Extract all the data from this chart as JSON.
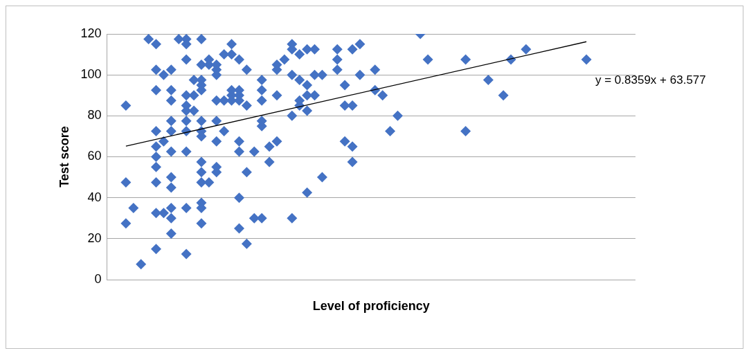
{
  "chart_data": {
    "type": "scatter",
    "xlabel": "Level of proficiency",
    "ylabel": "Test score",
    "ylim": [
      0,
      120
    ],
    "yticks": [
      0,
      20,
      40,
      60,
      80,
      100,
      120
    ],
    "grid": "y",
    "marker": "diamond",
    "annotations": [
      "y = 0.8359x + 63.577"
    ],
    "categories": [
      null,
      null,
      null,
      null,
      null,
      null,
      null,
      null,
      null,
      null,
      null,
      null,
      null,
      null,
      null,
      null,
      null,
      null,
      null,
      null,
      null,
      null,
      null,
      null,
      null,
      null,
      null,
      null,
      null,
      null,
      null,
      null,
      null,
      null,
      null,
      null,
      null,
      null,
      null,
      null,
      null,
      null,
      null,
      null,
      null,
      null,
      null,
      null,
      null,
      null,
      null,
      null,
      null,
      null,
      null,
      null,
      null,
      null,
      null,
      null,
      null,
      null,
      null,
      null,
      null,
      null,
      null,
      null,
      null,
      null
    ],
    "series": [
      {
        "color": "#4472c4",
        "values": [
          null,
          null,
          85,
          35,
          7.5,
          117.5,
          115,
          100,
          102.5,
          117.5,
          117.5,
          97.5,
          117.5,
          107.5,
          105,
          110,
          115,
          107.5,
          102.5,
          62.5,
          97.5,
          65,
          105,
          107.5,
          115,
          110,
          112.5,
          112.5,
          100,
          null,
          112.5,
          95,
          112.5,
          115,
          null,
          102.5,
          90,
          72.5,
          80,
          null,
          null,
          120,
          107.5,
          null,
          null,
          null,
          null,
          107.5,
          null,
          null,
          97.5,
          null,
          90,
          107.5,
          null,
          112.5,
          null,
          null,
          null,
          null,
          null,
          null,
          null,
          107.5,
          null,
          null,
          null,
          null,
          null,
          null
        ]
      },
      {
        "color": "#4472c4",
        "values": [
          null,
          null,
          47.5,
          null,
          null,
          null,
          102.5,
          67.5,
          92.5,
          null,
          115,
          90,
          105,
          105,
          102.5,
          87.5,
          110,
          92.5,
          85,
          30,
          92.5,
          57.5,
          102.5,
          null,
          112.5,
          97.5,
          95,
          100,
          50,
          null,
          107.5,
          85,
          85,
          100,
          null,
          92.5,
          null,
          null,
          null,
          null,
          null,
          null,
          null,
          null,
          null,
          null,
          null,
          72.5,
          null,
          null,
          null,
          null,
          null,
          null,
          null,
          null,
          null,
          null,
          null,
          null,
          null,
          null,
          null,
          null,
          null,
          null,
          null,
          null,
          null,
          null
        ]
      },
      {
        "color": "#4472c4",
        "values": [
          null,
          null,
          27.5,
          null,
          null,
          null,
          92.5,
          32.5,
          87.5,
          null,
          107.5,
          82.5,
          97.5,
          47.5,
          100,
          72.5,
          92.5,
          90,
          52.5,
          null,
          87.5,
          null,
          90,
          null,
          100,
          87.5,
          90,
          90,
          null,
          null,
          102.5,
          67.5,
          65,
          null,
          null,
          null,
          null,
          null,
          null,
          null,
          null,
          null,
          null,
          null,
          null,
          null,
          null,
          null,
          null,
          null,
          null,
          null,
          null,
          null,
          null,
          null,
          null,
          null,
          null,
          null,
          null,
          null,
          null,
          null,
          null,
          null,
          null,
          null,
          null,
          null
        ]
      },
      {
        "color": "#4472c4",
        "values": [
          null,
          null,
          null,
          null,
          null,
          null,
          72.5,
          null,
          77.5,
          null,
          90,
          null,
          95,
          null,
          87.5,
          null,
          90,
          87.5,
          17.5,
          null,
          77.5,
          null,
          67.5,
          null,
          80,
          85,
          82.5,
          null,
          null,
          null,
          null,
          null,
          57.5,
          null,
          null,
          null,
          null,
          null,
          null,
          null,
          null,
          null,
          null,
          null,
          null,
          null,
          null,
          null,
          null,
          null,
          null,
          null,
          null,
          null,
          null,
          null,
          null,
          null,
          null,
          null,
          null,
          null,
          null,
          null,
          null,
          null,
          null,
          null,
          null,
          null
        ]
      },
      {
        "color": "#4472c4",
        "values": [
          null,
          null,
          null,
          null,
          null,
          null,
          65,
          null,
          72.5,
          null,
          85,
          null,
          92.5,
          null,
          77.5,
          null,
          87.5,
          67.5,
          null,
          null,
          75,
          null,
          null,
          null,
          30,
          null,
          42.5,
          null,
          null,
          null,
          null,
          null,
          null,
          null,
          null,
          null,
          null,
          null,
          null,
          null,
          null,
          null,
          null,
          null,
          null,
          null,
          null,
          null,
          null,
          null,
          null,
          null,
          null,
          null,
          null,
          null,
          null,
          null,
          null,
          null,
          null,
          null,
          null,
          null,
          null,
          null,
          null,
          null,
          null,
          null
        ]
      },
      {
        "color": "#4472c4",
        "values": [
          null,
          null,
          null,
          null,
          null,
          null,
          60,
          null,
          62.5,
          null,
          82.5,
          null,
          77.5,
          null,
          67.5,
          null,
          null,
          62.5,
          null,
          null,
          30,
          null,
          null,
          null,
          null,
          null,
          null,
          null,
          null,
          null,
          null,
          null,
          null,
          null,
          null,
          null,
          null,
          null,
          null,
          null,
          null,
          null,
          null,
          null,
          null,
          null,
          null,
          null,
          null,
          null,
          null,
          null,
          null,
          null,
          null,
          null,
          null,
          null,
          null,
          null,
          null,
          null,
          null,
          null,
          null,
          null,
          null,
          null,
          null,
          null
        ]
      },
      {
        "color": "#4472c4",
        "values": [
          null,
          null,
          null,
          null,
          null,
          null,
          55,
          null,
          50,
          null,
          77.5,
          null,
          72.5,
          null,
          55,
          null,
          null,
          40,
          null,
          null,
          null,
          null,
          null,
          null,
          null,
          null,
          null,
          null,
          null,
          null,
          null,
          null,
          null,
          null,
          null,
          null,
          null,
          null,
          null,
          null,
          null,
          null,
          null,
          null,
          null,
          null,
          null,
          null,
          null,
          null,
          null,
          null,
          null,
          null,
          null,
          null,
          null,
          null,
          null,
          null,
          null,
          null,
          null,
          null,
          null,
          null,
          null,
          null,
          null,
          null
        ]
      },
      {
        "color": "#4472c4",
        "values": [
          null,
          null,
          null,
          null,
          null,
          null,
          47.5,
          null,
          45,
          null,
          72.5,
          null,
          70,
          null,
          52.5,
          null,
          null,
          25,
          null,
          null,
          null,
          null,
          null,
          null,
          null,
          null,
          null,
          null,
          null,
          null,
          null,
          null,
          null,
          null,
          null,
          null,
          null,
          null,
          null,
          null,
          null,
          null,
          null,
          null,
          null,
          null,
          null,
          null,
          null,
          null,
          null,
          null,
          null,
          null,
          null,
          null,
          null,
          null,
          null,
          null,
          null,
          null,
          null,
          null,
          null,
          null,
          null,
          null,
          null,
          null
        ]
      },
      {
        "color": "#4472c4",
        "values": [
          null,
          null,
          null,
          null,
          null,
          null,
          32.5,
          null,
          35,
          null,
          62.5,
          null,
          57.5,
          null,
          null,
          null,
          null,
          null,
          null,
          null,
          null,
          null,
          null,
          null,
          null,
          null,
          null,
          null,
          null,
          null,
          null,
          null,
          null,
          null,
          null,
          null,
          null,
          null,
          null,
          null,
          null,
          null,
          null,
          null,
          null,
          null,
          null,
          null,
          null,
          null,
          null,
          null,
          null,
          null,
          null,
          null,
          null,
          null,
          null,
          null,
          null,
          null,
          null,
          null,
          null,
          null,
          null,
          null,
          null,
          null
        ]
      },
      {
        "color": "#4472c4",
        "values": [
          null,
          null,
          null,
          null,
          null,
          null,
          15,
          null,
          30,
          null,
          35,
          null,
          52.5,
          null,
          null,
          null,
          null,
          null,
          null,
          null,
          null,
          null,
          null,
          null,
          null,
          null,
          null,
          null,
          null,
          null,
          null,
          null,
          null,
          null,
          null,
          null,
          null,
          null,
          null,
          null,
          null,
          null,
          null,
          null,
          null,
          null,
          null,
          null,
          null,
          null,
          null,
          null,
          null,
          null,
          null,
          null,
          null,
          null,
          null,
          null,
          null,
          null,
          null,
          null,
          null,
          null,
          null,
          null,
          null,
          null
        ]
      },
      {
        "color": "#4472c4",
        "values": [
          null,
          null,
          null,
          null,
          null,
          null,
          null,
          null,
          22.5,
          null,
          12.5,
          null,
          47.5,
          null,
          null,
          null,
          null,
          null,
          null,
          null,
          null,
          null,
          null,
          null,
          null,
          null,
          null,
          null,
          null,
          null,
          null,
          null,
          null,
          null,
          null,
          null,
          null,
          null,
          null,
          null,
          null,
          null,
          null,
          null,
          null,
          null,
          null,
          null,
          null,
          null,
          null,
          null,
          null,
          null,
          null,
          null,
          null,
          null,
          null,
          null,
          null,
          null,
          null,
          null,
          null,
          null,
          null,
          null,
          null,
          null
        ]
      },
      {
        "color": "#4472c4",
        "values": [
          null,
          null,
          null,
          null,
          null,
          null,
          null,
          null,
          null,
          null,
          null,
          null,
          37.5,
          null,
          null,
          null,
          null,
          null,
          null,
          null,
          null,
          null,
          null,
          null,
          null,
          null,
          null,
          null,
          null,
          null,
          null,
          null,
          null,
          null,
          null,
          null,
          null,
          null,
          null,
          null,
          null,
          null,
          null,
          null,
          null,
          null,
          null,
          null,
          null,
          null,
          null,
          null,
          null,
          null,
          null,
          null,
          null,
          null,
          null,
          null,
          null,
          null,
          null,
          null,
          null,
          null,
          null,
          null,
          null,
          null
        ]
      },
      {
        "color": "#4472c4",
        "values": [
          null,
          null,
          null,
          null,
          null,
          null,
          null,
          null,
          null,
          null,
          null,
          null,
          35,
          null,
          null,
          null,
          null,
          null,
          null,
          null,
          null,
          null,
          null,
          null,
          null,
          null,
          null,
          null,
          null,
          null,
          null,
          null,
          null,
          null,
          null,
          null,
          null,
          null,
          null,
          null,
          null,
          null,
          null,
          null,
          null,
          null,
          null,
          null,
          null,
          null,
          null,
          null,
          null,
          null,
          null,
          null,
          null,
          null,
          null,
          null,
          null,
          null,
          null,
          null,
          null,
          null,
          null,
          null,
          null,
          null
        ]
      },
      {
        "color": "#4472c4",
        "values": [
          null,
          null,
          null,
          null,
          null,
          null,
          null,
          null,
          null,
          null,
          null,
          null,
          27.5,
          null,
          null,
          null,
          null,
          null,
          null,
          null,
          null,
          null,
          null,
          null,
          null,
          null,
          null,
          null,
          null,
          null,
          null,
          null,
          null,
          null,
          null,
          null,
          null,
          null,
          null,
          null,
          null,
          null,
          null,
          null,
          null,
          null,
          null,
          null,
          null,
          null,
          null,
          null,
          null,
          null,
          null,
          null,
          null,
          null,
          null,
          null,
          null,
          null,
          null,
          null,
          null,
          null,
          null,
          null,
          null,
          null
        ]
      },
      {
        "type": "line",
        "color": "#000000",
        "marker": "none",
        "values": [
          null,
          null,
          65.2,
          null,
          null,
          null,
          null,
          null,
          null,
          null,
          null,
          null,
          null,
          null,
          null,
          null,
          null,
          null,
          null,
          null,
          null,
          null,
          null,
          null,
          null,
          null,
          null,
          null,
          null,
          null,
          null,
          null,
          null,
          null,
          null,
          null,
          null,
          null,
          null,
          null,
          null,
          null,
          null,
          null,
          null,
          null,
          null,
          null,
          null,
          null,
          null,
          null,
          null,
          null,
          null,
          null,
          null,
          null,
          null,
          null,
          null,
          null,
          null,
          116.2,
          null,
          null,
          null,
          null,
          null,
          null
        ]
      }
    ]
  }
}
